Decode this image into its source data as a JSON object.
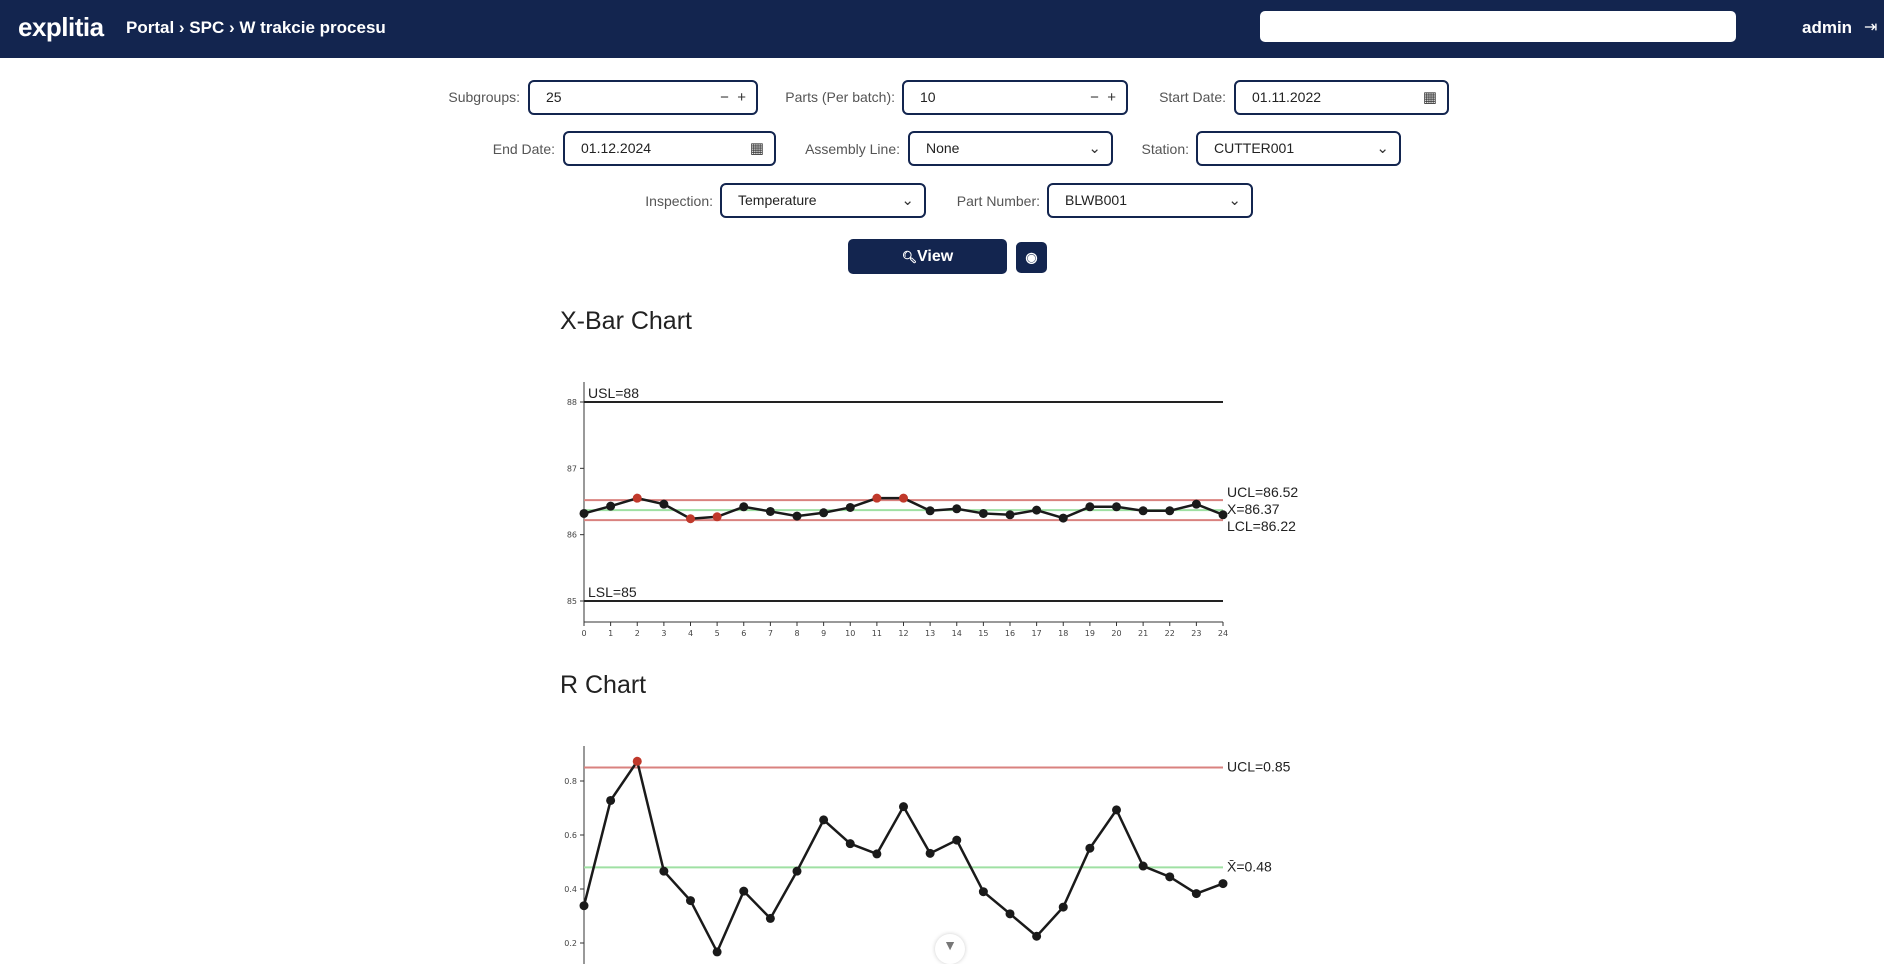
{
  "header": {
    "logo": "explitia",
    "breadcrumb": "Portal › SPC › W trakcie procesu",
    "search_value": "",
    "user": "admin",
    "logout_icon": "logout-icon"
  },
  "form": {
    "subgroups_label": "Subgroups:",
    "subgroups_value": "25",
    "parts_label": "Parts (Per batch):",
    "parts_value": "10",
    "start_date_label": "Start Date:",
    "start_date_value": "01.11.2022",
    "end_date_label": "End Date:",
    "end_date_value": "01.12.2024",
    "assembly_line_label": "Assembly Line:",
    "assembly_line_value": "None",
    "station_label": "Station:",
    "station_value": "CUTTER001",
    "inspection_label": "Inspection:",
    "inspection_value": "Temperature",
    "part_number_label": "Part Number:",
    "part_number_value": "BLWB001",
    "view_label": "View"
  },
  "chart_data": [
    {
      "type": "line",
      "title": "X-Bar Chart",
      "x": [
        0,
        1,
        2,
        3,
        4,
        5,
        6,
        7,
        8,
        9,
        10,
        11,
        12,
        13,
        14,
        15,
        16,
        17,
        18,
        19,
        20,
        21,
        22,
        23,
        24
      ],
      "values": [
        86.32,
        86.43,
        86.55,
        86.46,
        86.24,
        86.27,
        86.42,
        86.35,
        86.28,
        86.33,
        86.41,
        86.55,
        86.55,
        86.36,
        86.39,
        86.32,
        86.3,
        86.37,
        86.25,
        86.42,
        86.42,
        86.36,
        86.36,
        86.46,
        86.3
      ],
      "out_of_control": [
        2,
        4,
        5,
        11,
        12
      ],
      "yticks": [
        85,
        86,
        87,
        88
      ],
      "ylim": [
        84.65,
        88.35
      ],
      "xlim": [
        0,
        24
      ],
      "limits": [
        {
          "label": "USL=88",
          "value": 88,
          "color": "#222222"
        },
        {
          "label": "LSL=85",
          "value": 85,
          "color": "#222222"
        },
        {
          "label": "UCL=86.52",
          "value": 86.52,
          "color": "#d9827f"
        },
        {
          "label": "X=86.37",
          "value": 86.37,
          "color": "#9fe0a3"
        },
        {
          "label": "LCL=86.22",
          "value": 86.22,
          "color": "#d9827f"
        }
      ]
    },
    {
      "type": "line",
      "title": "R Chart",
      "x": [
        0,
        1,
        2,
        3,
        4,
        5,
        6,
        7,
        8,
        9,
        10,
        11,
        12,
        13,
        14,
        15,
        16,
        17,
        18,
        19,
        20,
        21,
        22,
        23,
        24
      ],
      "values": [
        0.338,
        0.728,
        0.873,
        0.466,
        0.357,
        0.167,
        0.392,
        0.291,
        0.466,
        0.656,
        0.568,
        0.53,
        0.705,
        0.532,
        0.581,
        0.39,
        0.308,
        0.225,
        0.333,
        0.551,
        0.693,
        0.485,
        0.445,
        0.383,
        0.42
      ],
      "out_of_control": [
        2
      ],
      "yticks": [
        0.2,
        0.4,
        0.6,
        0.8
      ],
      "ylim": [
        0,
        0.93
      ],
      "xlim": [
        0,
        24
      ],
      "limits": [
        {
          "label": "UCL=0.85",
          "value": 0.85,
          "color": "#d9827f"
        },
        {
          "label": "X̄=0.48",
          "value": 0.48,
          "color": "#9fe0a3"
        }
      ]
    }
  ],
  "colors": {
    "brand": "#13254f",
    "point": "#1a1a1a",
    "out_point": "#c0392b"
  }
}
